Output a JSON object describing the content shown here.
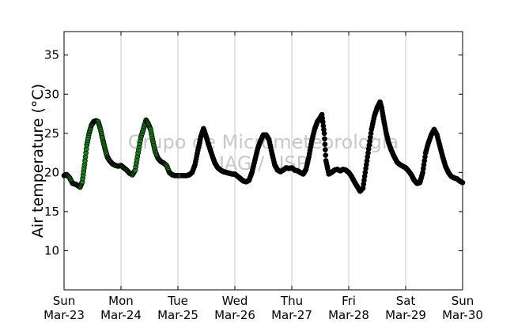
{
  "chart_data": {
    "type": "scatter",
    "ylabel": "Air temperature (°C)",
    "ylim": [
      5,
      38
    ],
    "yticks": [
      10,
      15,
      20,
      25,
      30,
      35
    ],
    "xlim": [
      0,
      7
    ],
    "xticks": [
      {
        "x": 0,
        "day": "Sun",
        "date": "Mar-23"
      },
      {
        "x": 1,
        "day": "Mon",
        "date": "Mar-24"
      },
      {
        "x": 2,
        "day": "Tue",
        "date": "Mar-25"
      },
      {
        "x": 3,
        "day": "Wed",
        "date": "Mar-26"
      },
      {
        "x": 4,
        "day": "Thu",
        "date": "Mar-27"
      },
      {
        "x": 5,
        "day": "Fri",
        "date": "Mar-28"
      },
      {
        "x": 6,
        "day": "Sat",
        "date": "Mar-29"
      },
      {
        "x": 7,
        "day": "Sun",
        "date": "Mar-30"
      }
    ],
    "grid": "vertical",
    "watermark": [
      "Grupo de Micrometeorologia",
      "IAG / USP"
    ],
    "series": [
      {
        "color": "#1a7f1a",
        "points": [
          [
            0.0,
            19.6
          ],
          [
            0.05,
            19.7
          ],
          [
            0.1,
            19.3
          ],
          [
            0.15,
            18.6
          ],
          [
            0.2,
            18.5
          ],
          [
            0.25,
            18.3
          ],
          [
            0.28,
            18.1
          ],
          [
            0.32,
            18.8
          ],
          [
            0.36,
            21.0
          ],
          [
            0.4,
            23.5
          ],
          [
            0.44,
            25.0
          ],
          [
            0.48,
            26.0
          ],
          [
            0.52,
            26.5
          ],
          [
            0.56,
            26.6
          ],
          [
            0.6,
            26.5
          ],
          [
            0.64,
            25.5
          ],
          [
            0.68,
            24.2
          ],
          [
            0.72,
            23.0
          ],
          [
            0.76,
            22.0
          ],
          [
            0.8,
            21.5
          ],
          [
            0.85,
            21.1
          ],
          [
            0.9,
            20.9
          ],
          [
            0.95,
            20.8
          ],
          [
            1.0,
            20.9
          ],
          [
            1.05,
            20.6
          ],
          [
            1.1,
            20.3
          ],
          [
            1.15,
            19.9
          ],
          [
            1.2,
            19.7
          ],
          [
            1.25,
            20.3
          ],
          [
            1.3,
            22.5
          ],
          [
            1.35,
            24.5
          ],
          [
            1.4,
            25.7
          ],
          [
            1.44,
            26.7
          ],
          [
            1.48,
            26.2
          ],
          [
            1.52,
            25.5
          ],
          [
            1.56,
            24.0
          ],
          [
            1.6,
            22.7
          ],
          [
            1.65,
            21.8
          ],
          [
            1.7,
            21.4
          ],
          [
            1.75,
            21.2
          ],
          [
            1.8,
            20.9
          ],
          [
            1.85,
            20.0
          ],
          [
            1.9,
            19.7
          ],
          [
            1.95,
            19.6
          ],
          [
            2.0,
            19.6
          ],
          [
            2.05,
            19.6
          ]
        ]
      },
      {
        "color": "#000000",
        "points": [
          [
            2.08,
            19.6
          ],
          [
            2.15,
            19.6
          ],
          [
            2.2,
            19.7
          ],
          [
            2.25,
            20.0
          ],
          [
            2.3,
            21.0
          ],
          [
            2.35,
            22.8
          ],
          [
            2.4,
            24.5
          ],
          [
            2.45,
            25.6
          ],
          [
            2.5,
            24.5
          ],
          [
            2.55,
            23.3
          ],
          [
            2.6,
            22.2
          ],
          [
            2.65,
            21.2
          ],
          [
            2.7,
            20.6
          ],
          [
            2.75,
            20.3
          ],
          [
            2.8,
            20.1
          ],
          [
            2.85,
            20.0
          ],
          [
            2.9,
            19.9
          ],
          [
            2.95,
            19.8
          ],
          [
            3.0,
            19.8
          ],
          [
            3.05,
            19.5
          ],
          [
            3.1,
            19.2
          ],
          [
            3.15,
            18.9
          ],
          [
            3.2,
            18.8
          ],
          [
            3.25,
            19.0
          ],
          [
            3.3,
            20.0
          ],
          [
            3.35,
            21.5
          ],
          [
            3.4,
            23.0
          ],
          [
            3.45,
            24.0
          ],
          [
            3.5,
            24.8
          ],
          [
            3.55,
            24.8
          ],
          [
            3.6,
            24.2
          ],
          [
            3.65,
            22.5
          ],
          [
            3.7,
            21.0
          ],
          [
            3.75,
            20.3
          ],
          [
            3.8,
            20.1
          ],
          [
            3.85,
            20.3
          ],
          [
            3.9,
            20.6
          ],
          [
            3.95,
            20.5
          ],
          [
            4.0,
            20.6
          ],
          [
            4.05,
            20.3
          ],
          [
            4.1,
            20.2
          ],
          [
            4.15,
            20.0
          ],
          [
            4.2,
            19.8
          ],
          [
            4.25,
            20.4
          ],
          [
            4.3,
            22.0
          ],
          [
            4.35,
            24.0
          ],
          [
            4.4,
            25.5
          ],
          [
            4.45,
            26.5
          ],
          [
            4.5,
            27.0
          ],
          [
            4.53,
            27.4
          ],
          [
            4.57,
            25.0
          ],
          [
            4.6,
            21.5
          ],
          [
            4.65,
            19.8
          ],
          [
            4.7,
            20.0
          ],
          [
            4.75,
            20.3
          ],
          [
            4.8,
            20.4
          ],
          [
            4.85,
            20.2
          ],
          [
            4.9,
            20.4
          ],
          [
            4.95,
            20.3
          ],
          [
            5.0,
            20.0
          ],
          [
            5.05,
            19.5
          ],
          [
            5.1,
            18.8
          ],
          [
            5.15,
            18.2
          ],
          [
            5.2,
            17.6
          ],
          [
            5.25,
            18.0
          ],
          [
            5.3,
            20.5
          ],
          [
            5.35,
            23.0
          ],
          [
            5.4,
            25.5
          ],
          [
            5.45,
            27.2
          ],
          [
            5.5,
            28.3
          ],
          [
            5.55,
            29.0
          ],
          [
            5.58,
            28.2
          ],
          [
            5.62,
            26.5
          ],
          [
            5.66,
            25.0
          ],
          [
            5.7,
            23.8
          ],
          [
            5.75,
            22.8
          ],
          [
            5.8,
            22.0
          ],
          [
            5.85,
            21.3
          ],
          [
            5.9,
            21.0
          ],
          [
            5.95,
            20.8
          ],
          [
            6.0,
            20.6
          ],
          [
            6.05,
            20.2
          ],
          [
            6.1,
            19.7
          ],
          [
            6.15,
            19.0
          ],
          [
            6.2,
            18.6
          ],
          [
            6.25,
            18.7
          ],
          [
            6.3,
            20.0
          ],
          [
            6.35,
            22.5
          ],
          [
            6.4,
            23.8
          ],
          [
            6.45,
            24.8
          ],
          [
            6.5,
            25.5
          ],
          [
            6.55,
            24.8
          ],
          [
            6.6,
            23.4
          ],
          [
            6.65,
            22.0
          ],
          [
            6.7,
            20.8
          ],
          [
            6.75,
            20.0
          ],
          [
            6.8,
            19.5
          ],
          [
            6.85,
            19.3
          ],
          [
            6.9,
            19.2
          ],
          [
            6.95,
            18.9
          ],
          [
            7.0,
            18.7
          ]
        ]
      }
    ]
  }
}
